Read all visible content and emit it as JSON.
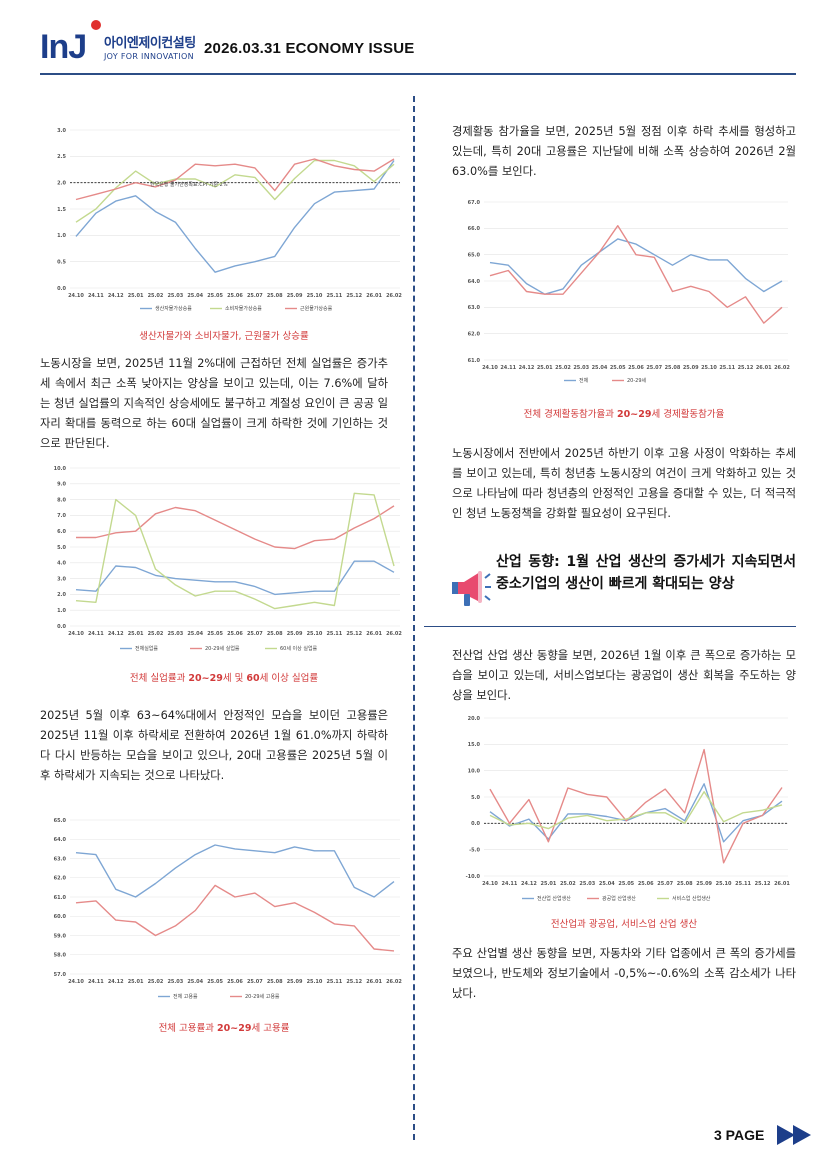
{
  "header": {
    "logo_mark": "InJ",
    "logo_korean": "아이엔제이컨설팅",
    "logo_tagline": "JOY FOR INNOVATION",
    "issue_title": "2026.03.31 ECONOMY ISSUE"
  },
  "months": [
    "24.10",
    "24.11",
    "24.12",
    "25.01",
    "25.02",
    "25.03",
    "25.04",
    "25.05",
    "25.06",
    "25.07",
    "25.08",
    "25.09",
    "25.10",
    "25.11",
    "25.12",
    "26.01",
    "26.02"
  ],
  "months_short": [
    "24.10",
    "24.11",
    "24.12",
    "25.01",
    "25.02",
    "25.03",
    "25.04",
    "25.05",
    "25.06",
    "25.07",
    "25.08",
    "25.09",
    "25.10",
    "25.11",
    "25.12",
    "26.01"
  ],
  "left_column": {
    "caption1": "생산자물가와 소비자물가, 근원물가 상승률",
    "para1": "노동시장을 보면, 2025년 11월 2%대에 근접하던 전체 실업률은 증가추세 속에서 최근 소폭 낮아지는 양상을 보이고 있는데, 이는 7.6%에 달하는 청년 실업률의 지속적인 상승세에도 불구하고 계절성 요인이 큰 공공 일자리 확대를 동력으로 하는 60대 실업률이 크게 하락한 것에 기인하는 것으로 판단된다.",
    "caption2_pre": "전체 실업률과 ",
    "caption2_bold1": "20~29",
    "caption2_mid": "세 및 ",
    "caption2_bold2": "60",
    "caption2_post": "세 이상 실업률",
    "para2": "2025년 5월 이후 63~64%대에서 안정적인 모습을 보이던 고용률은 2025년 11월 이후 하락세로 전환하여 2026년 1월 61.0%까지 하락하다 다시 반등하는 모습을 보이고 있으나, 20대 고용률은 2025년 5월 이후 하락세가 지속되는 것으로 나타났다.",
    "caption3_pre": "전체 고용률과 ",
    "caption3_bold": "20~29",
    "caption3_post": "세 고용률"
  },
  "right_column": {
    "para1": "경제활동 참가율을 보면, 2025년 5월 정점 이후 하락 추세를 형성하고 있는데, 특히 20대 고용률은 지난달에 비해 소폭 상승하여 2026년 2월 63.0%를 보인다.",
    "caption4_pre": "전체 경제활동참가율과 ",
    "caption4_bold": "20~29",
    "caption4_post": "세 경제활동참가율",
    "para2": "노동시장에서 전반에서 2025년 하반기 이후 고용 사정이 악화하는 추세를 보이고 있는데, 특히 청년층 노동시장의 여건이 크게 악화하고 있는 것으로 나타남에 따라 청년층의 안정적인 고용을 증대할 수 있는, 더 적극적인 청년 노동정책을 강화할 필요성이 요구된다.",
    "section_heading": "산업 동향: 1월 산업 생산의 증가세가 지속되면서 중소기업의 생산이 빠르게 확대되는 양상",
    "section_icon": "megaphone-icon",
    "para3": "전산업 산업 생산 동향을 보면, 2026년 1월 이후 큰 폭으로 증가하는 모습을 보이고 있는데, 서비스업보다는 광공업이 생산 회복을 주도하는 양상을 보인다.",
    "caption5": "전산업과 광공업, 서비스업 산업 생산",
    "para4": "주요 산업별 생산 동향을 보면, 자동차와 기타 업종에서 큰 폭의 증가세를 보였으나, 반도체와 정보기술에서 -0,5%~-0.6%의 소폭 감소세가 나타났다."
  },
  "footer": {
    "page_label": "3 PAGE"
  },
  "chart_data": [
    {
      "type": "line",
      "xkey": "months",
      "ylim": [
        0,
        3
      ],
      "yticks": [
        "0.0",
        "0.5",
        "1.0",
        "1.5",
        "2.0",
        "2.5",
        "3.0"
      ],
      "annotation": "한국은행 물가안정목표:CPI 기준 2%",
      "reference_line": 2.0,
      "series": [
        {
          "name": "생산자물가상승률",
          "color": "#7ea6d4",
          "values": [
            0.98,
            1.42,
            1.65,
            1.75,
            1.45,
            1.25,
            0.75,
            0.3,
            0.42,
            0.5,
            0.6,
            1.15,
            1.6,
            1.82,
            1.85,
            1.88,
            2.42
          ]
        },
        {
          "name": "소비자물가상승률",
          "color": "#c3d98f",
          "values": [
            1.25,
            1.5,
            1.9,
            2.22,
            1.97,
            2.07,
            2.07,
            1.92,
            2.15,
            2.1,
            1.68,
            2.08,
            2.42,
            2.42,
            2.32,
            2.02,
            2.35
          ]
        },
        {
          "name": "근원물가상승률",
          "color": "#e58a89",
          "values": [
            1.68,
            1.78,
            1.88,
            2.0,
            1.92,
            2.05,
            2.35,
            2.32,
            2.35,
            2.28,
            1.85,
            2.35,
            2.45,
            2.32,
            2.25,
            2.22,
            2.45
          ]
        }
      ]
    },
    {
      "type": "line",
      "xkey": "months",
      "ylim": [
        0,
        10
      ],
      "yticks": [
        "0.0",
        "1.0",
        "2.0",
        "3.0",
        "4.0",
        "5.0",
        "6.0",
        "7.0",
        "8.0",
        "9.0",
        "10.0"
      ],
      "series": [
        {
          "name": "전체실업률",
          "color": "#7ea6d4",
          "values": [
            2.3,
            2.2,
            3.8,
            3.7,
            3.2,
            3.0,
            2.9,
            2.8,
            2.8,
            2.5,
            2.0,
            2.1,
            2.2,
            2.2,
            4.1,
            4.1,
            3.4
          ]
        },
        {
          "name": "20-29세 실업률",
          "color": "#e58a89",
          "values": [
            5.6,
            5.6,
            5.9,
            6.0,
            7.1,
            7.5,
            7.3,
            6.7,
            6.1,
            5.5,
            5.0,
            4.9,
            5.4,
            5.5,
            6.2,
            6.8,
            7.6
          ]
        },
        {
          "name": "60세 이상 실업률",
          "color": "#c3d98f",
          "values": [
            1.6,
            1.5,
            8.0,
            7.0,
            3.6,
            2.6,
            1.9,
            2.2,
            2.2,
            1.7,
            1.1,
            1.3,
            1.5,
            1.3,
            8.4,
            8.3,
            3.8
          ]
        }
      ]
    },
    {
      "type": "line",
      "xkey": "months",
      "ylim": [
        57,
        65
      ],
      "yticks": [
        "57.0",
        "58.0",
        "59.0",
        "60.0",
        "61.0",
        "62.0",
        "63.0",
        "64.0",
        "65.0"
      ],
      "series": [
        {
          "name": "전체 고용률",
          "color": "#7ea6d4",
          "values": [
            63.3,
            63.2,
            61.4,
            61.0,
            61.7,
            62.5,
            63.2,
            63.7,
            63.5,
            63.4,
            63.3,
            63.6,
            63.4,
            63.4,
            61.5,
            61.0,
            61.8
          ]
        },
        {
          "name": "20-29세 고용률",
          "color": "#e58a89",
          "values": [
            60.7,
            60.8,
            59.8,
            59.7,
            59.0,
            59.5,
            60.3,
            61.6,
            61.0,
            61.2,
            60.5,
            60.7,
            60.2,
            59.6,
            59.5,
            58.3,
            58.2
          ]
        }
      ]
    },
    {
      "type": "line",
      "xkey": "months",
      "ylim": [
        61,
        67
      ],
      "yticks": [
        "61.0",
        "62.0",
        "63.0",
        "64.0",
        "65.0",
        "66.0",
        "67.0"
      ],
      "series": [
        {
          "name": "전체",
          "color": "#7ea6d4",
          "values": [
            64.7,
            64.6,
            63.9,
            63.5,
            63.7,
            64.6,
            65.1,
            65.6,
            65.4,
            65.0,
            64.6,
            65.0,
            64.8,
            64.8,
            64.1,
            63.6,
            64.0
          ]
        },
        {
          "name": "20-29세",
          "color": "#e58a89",
          "values": [
            64.2,
            64.4,
            63.6,
            63.5,
            63.5,
            64.3,
            65.1,
            66.1,
            65.0,
            64.9,
            63.6,
            63.8,
            63.6,
            63.0,
            63.4,
            62.4,
            63.0
          ]
        }
      ]
    },
    {
      "type": "line",
      "xkey": "months_short",
      "ylim": [
        -10,
        20
      ],
      "yticks": [
        "-10.0",
        "-5.0",
        "0.0",
        "5.0",
        "10.0",
        "15.0",
        "20.0"
      ],
      "reference_line": 0,
      "series": [
        {
          "name": "전산업 산업생산",
          "color": "#7ea6d4",
          "values": [
            2.2,
            -0.5,
            0.8,
            -3.0,
            1.8,
            1.8,
            1.3,
            0.5,
            2.0,
            2.8,
            0.5,
            7.5,
            -3.5,
            0.5,
            1.5,
            4.2
          ]
        },
        {
          "name": "광공업 산업생산",
          "color": "#e58a89",
          "values": [
            6.5,
            0.0,
            4.5,
            -3.5,
            6.7,
            5.5,
            5.0,
            0.5,
            4.0,
            6.5,
            2.0,
            14.0,
            -7.5,
            0.0,
            1.5,
            6.8
          ]
        },
        {
          "name": "서비스업 산업생산",
          "color": "#c3d98f",
          "values": [
            1.5,
            -0.3,
            0.0,
            -1.0,
            1.0,
            1.5,
            0.5,
            0.8,
            2.0,
            2.0,
            0.0,
            6.0,
            0.3,
            2.0,
            2.5,
            3.5
          ]
        }
      ]
    }
  ]
}
